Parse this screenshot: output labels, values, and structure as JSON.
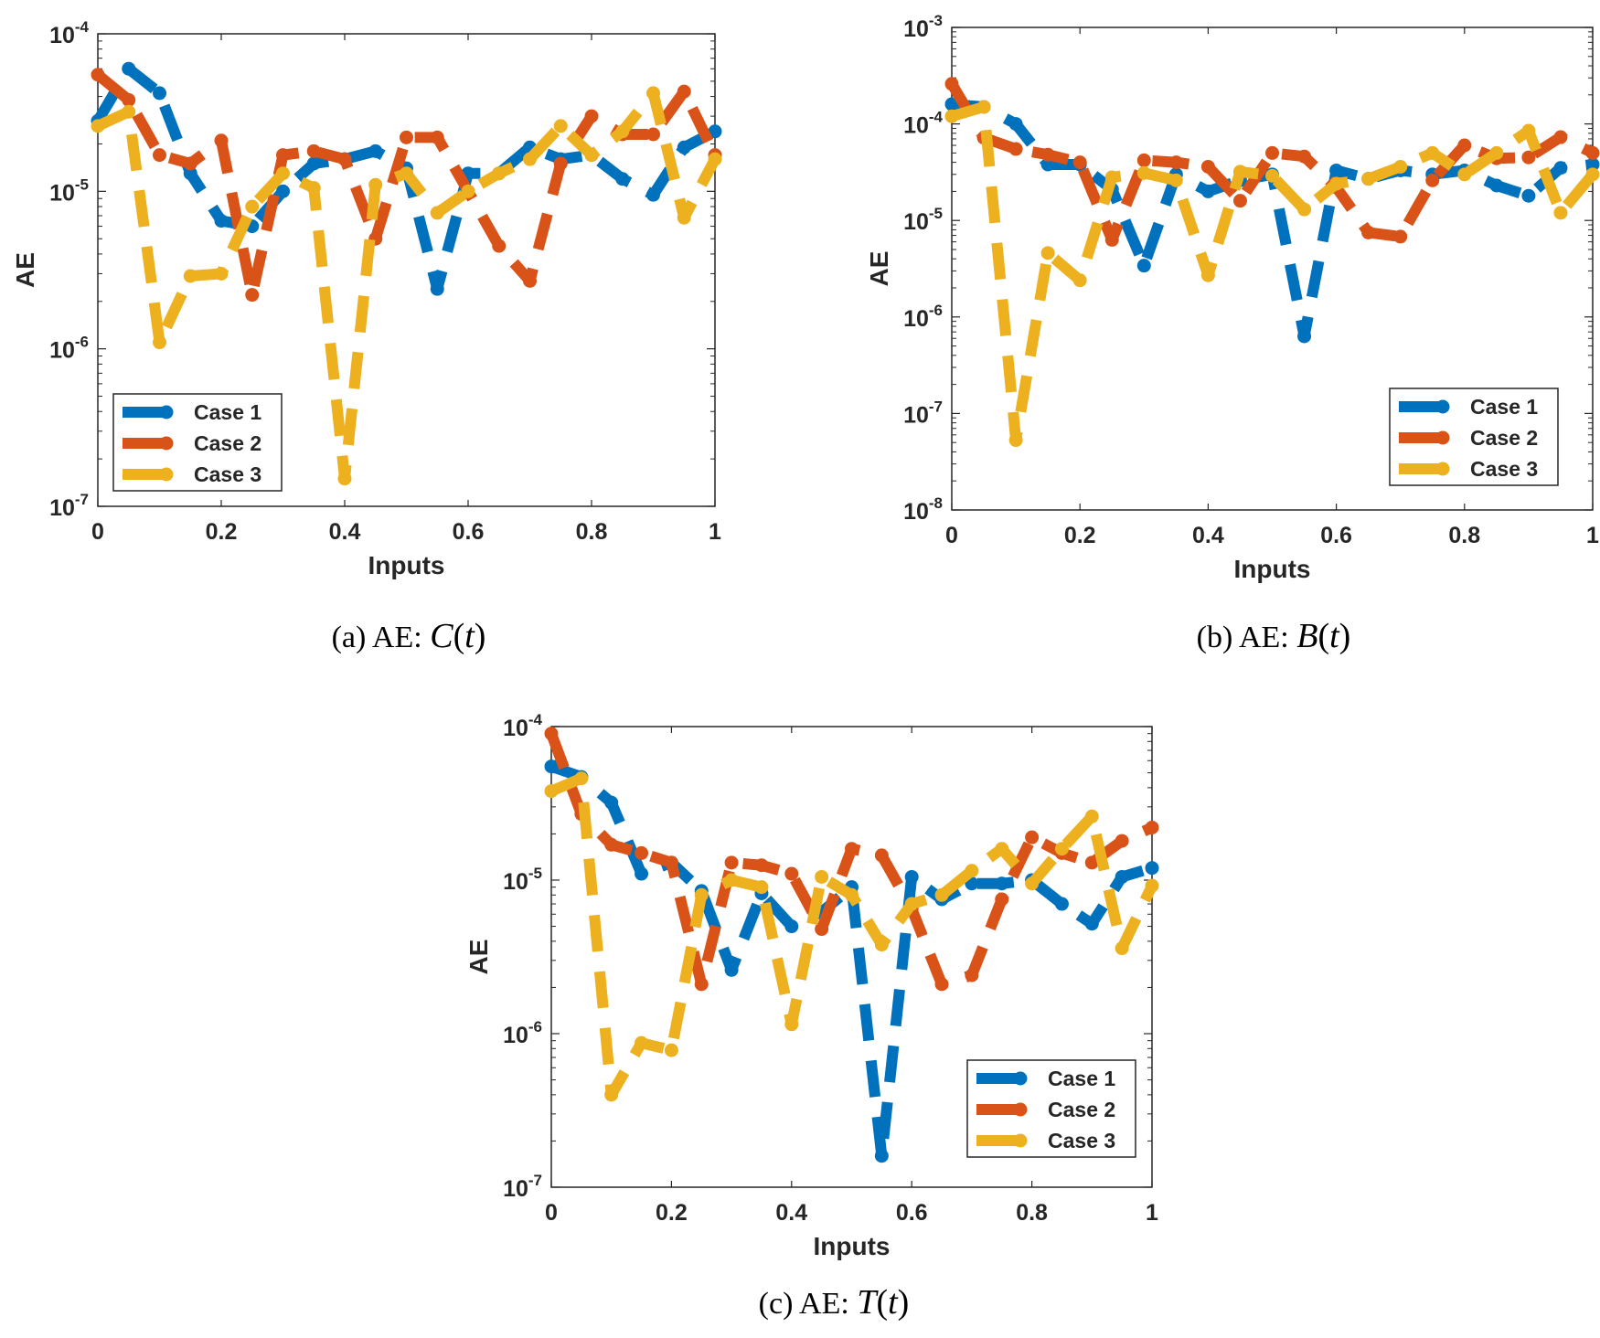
{
  "x": [
    0,
    0.05,
    0.1,
    0.15,
    0.2,
    0.25,
    0.3,
    0.35,
    0.4,
    0.45,
    0.5,
    0.55,
    0.6,
    0.65,
    0.7,
    0.75,
    0.8,
    0.85,
    0.9,
    0.95,
    1
  ],
  "xticks": [
    "0",
    "0.2",
    "0.4",
    "0.6",
    "0.8",
    "1"
  ],
  "colors": {
    "case1": "#0072BD",
    "case2": "#D95319",
    "case3": "#EDB120"
  },
  "chart_data": [
    {
      "id": "a",
      "type": "line",
      "caption": {
        "prefix": "(a) AE:",
        "fn": "C",
        "arg": "t"
      },
      "xlabel": "Inputs",
      "ylabel": "AE",
      "xlim": [
        0,
        1
      ],
      "ylog_exponents": [
        -7,
        -4
      ],
      "legend": [
        "Case 1",
        "Case 2",
        "Case 3"
      ],
      "legend_position": "bottom-left",
      "series": [
        {
          "name": "Case 1",
          "values": [
            2.8e-05,
            6e-05,
            4.2e-05,
            1.3e-05,
            6.5e-06,
            6e-06,
            1e-05,
            1.5e-05,
            1.6e-05,
            1.8e-05,
            1.4e-05,
            2.4e-06,
            1.3e-05,
            1.3e-05,
            1.9e-05,
            1.6e-05,
            1.7e-05,
            1.2e-05,
            9.5e-06,
            1.9e-05,
            2.4e-05
          ]
        },
        {
          "name": "Case 2",
          "values": [
            5.5e-05,
            3.8e-05,
            1.7e-05,
            1.5e-05,
            2.1e-05,
            2.2e-06,
            1.7e-05,
            1.8e-05,
            1.6e-05,
            5e-06,
            2.2e-05,
            2.2e-05,
            1e-05,
            4.5e-06,
            2.7e-06,
            1.5e-05,
            3e-05,
            2.3e-05,
            2.3e-05,
            4.3e-05,
            1.7e-05
          ]
        },
        {
          "name": "Case 3",
          "values": [
            2.6e-05,
            3.2e-05,
            1.1e-06,
            2.9e-06,
            3e-06,
            8e-06,
            1.3e-05,
            1.05e-05,
            1.5e-07,
            1.1e-05,
            1.3e-05,
            7.3e-06,
            1e-05,
            1.3e-05,
            1.6e-05,
            2.6e-05,
            1.7e-05,
            2.4e-05,
            4.2e-05,
            6.8e-06,
            1.6e-05
          ]
        }
      ]
    },
    {
      "id": "b",
      "type": "line",
      "caption": {
        "prefix": "(b) AE:",
        "fn": "B",
        "arg": "t"
      },
      "xlabel": "Inputs",
      "ylabel": "AE",
      "xlim": [
        0,
        1
      ],
      "ylog_exponents": [
        -8,
        -3
      ],
      "legend": [
        "Case 1",
        "Case 2",
        "Case 3"
      ],
      "legend_position": "bottom-right",
      "series": [
        {
          "name": "Case 1",
          "values": [
            0.00016,
            0.00015,
            0.0001,
            3.8e-05,
            3.8e-05,
            2.1e-05,
            3.4e-06,
            3e-05,
            2e-05,
            2.6e-05,
            3e-05,
            6.3e-07,
            3.3e-05,
            2.7e-05,
            3.3e-05,
            3e-05,
            3.3e-05,
            2.3e-05,
            1.8e-05,
            3.5e-05,
            3.8e-05
          ]
        },
        {
          "name": "Case 2",
          "values": [
            0.00026,
            7.2e-05,
            5.5e-05,
            4.8e-05,
            4e-05,
            6.3e-06,
            4.2e-05,
            4e-05,
            3.6e-05,
            1.6e-05,
            5e-05,
            4.6e-05,
            2.2e-05,
            7.5e-06,
            6.8e-06,
            2.6e-05,
            6e-05,
            4.4e-05,
            4.5e-05,
            7.3e-05,
            5e-05
          ]
        },
        {
          "name": "Case 3",
          "values": [
            0.00012,
            0.00015,
            5.3e-08,
            4.6e-06,
            2.4e-06,
            2.8e-05,
            3.1e-05,
            2.6e-05,
            2.7e-06,
            3.2e-05,
            2.9e-05,
            1.3e-05,
            2.4e-05,
            2.7e-05,
            3.6e-05,
            5e-05,
            3e-05,
            5e-05,
            8.5e-05,
            1.2e-05,
            3e-05
          ]
        }
      ]
    },
    {
      "id": "c",
      "type": "line",
      "caption": {
        "prefix": "(c) AE:",
        "fn": "T",
        "arg": "t"
      },
      "xlabel": "Inputs",
      "ylabel": "AE",
      "xlim": [
        0,
        1
      ],
      "ylog_exponents": [
        -7,
        -4
      ],
      "legend": [
        "Case 1",
        "Case 2",
        "Case 3"
      ],
      "legend_position": "bottom-right",
      "series": [
        {
          "name": "Case 1",
          "values": [
            5.5e-05,
            4.7e-05,
            3.2e-05,
            1.1e-05,
            1.3e-05,
            8.5e-06,
            2.6e-06,
            8.2e-06,
            5e-06,
            6.2e-06,
            9e-06,
            1.6e-07,
            1.05e-05,
            7.5e-06,
            9.5e-06,
            9.5e-06,
            1e-05,
            7e-06,
            5.2e-06,
            1.05e-05,
            1.2e-05
          ]
        },
        {
          "name": "Case 2",
          "values": [
            9e-05,
            2.7e-05,
            1.7e-05,
            1.5e-05,
            1.3e-05,
            2.1e-06,
            1.3e-05,
            1.25e-05,
            1.1e-05,
            4.8e-06,
            1.6e-05,
            1.45e-05,
            6.5e-06,
            2.1e-06,
            2.4e-06,
            7.5e-06,
            1.9e-05,
            1.5e-05,
            1.3e-05,
            1.8e-05,
            2.2e-05
          ]
        },
        {
          "name": "Case 3",
          "values": [
            3.8e-05,
            4.6e-05,
            4e-07,
            8.7e-07,
            7.8e-07,
            8e-06,
            1e-05,
            9e-06,
            1.15e-06,
            1.05e-05,
            8e-06,
            3.8e-06,
            7e-06,
            8e-06,
            1.15e-05,
            1.6e-05,
            9.5e-06,
            1.6e-05,
            2.6e-05,
            3.6e-06,
            9.2e-06
          ]
        }
      ]
    }
  ]
}
